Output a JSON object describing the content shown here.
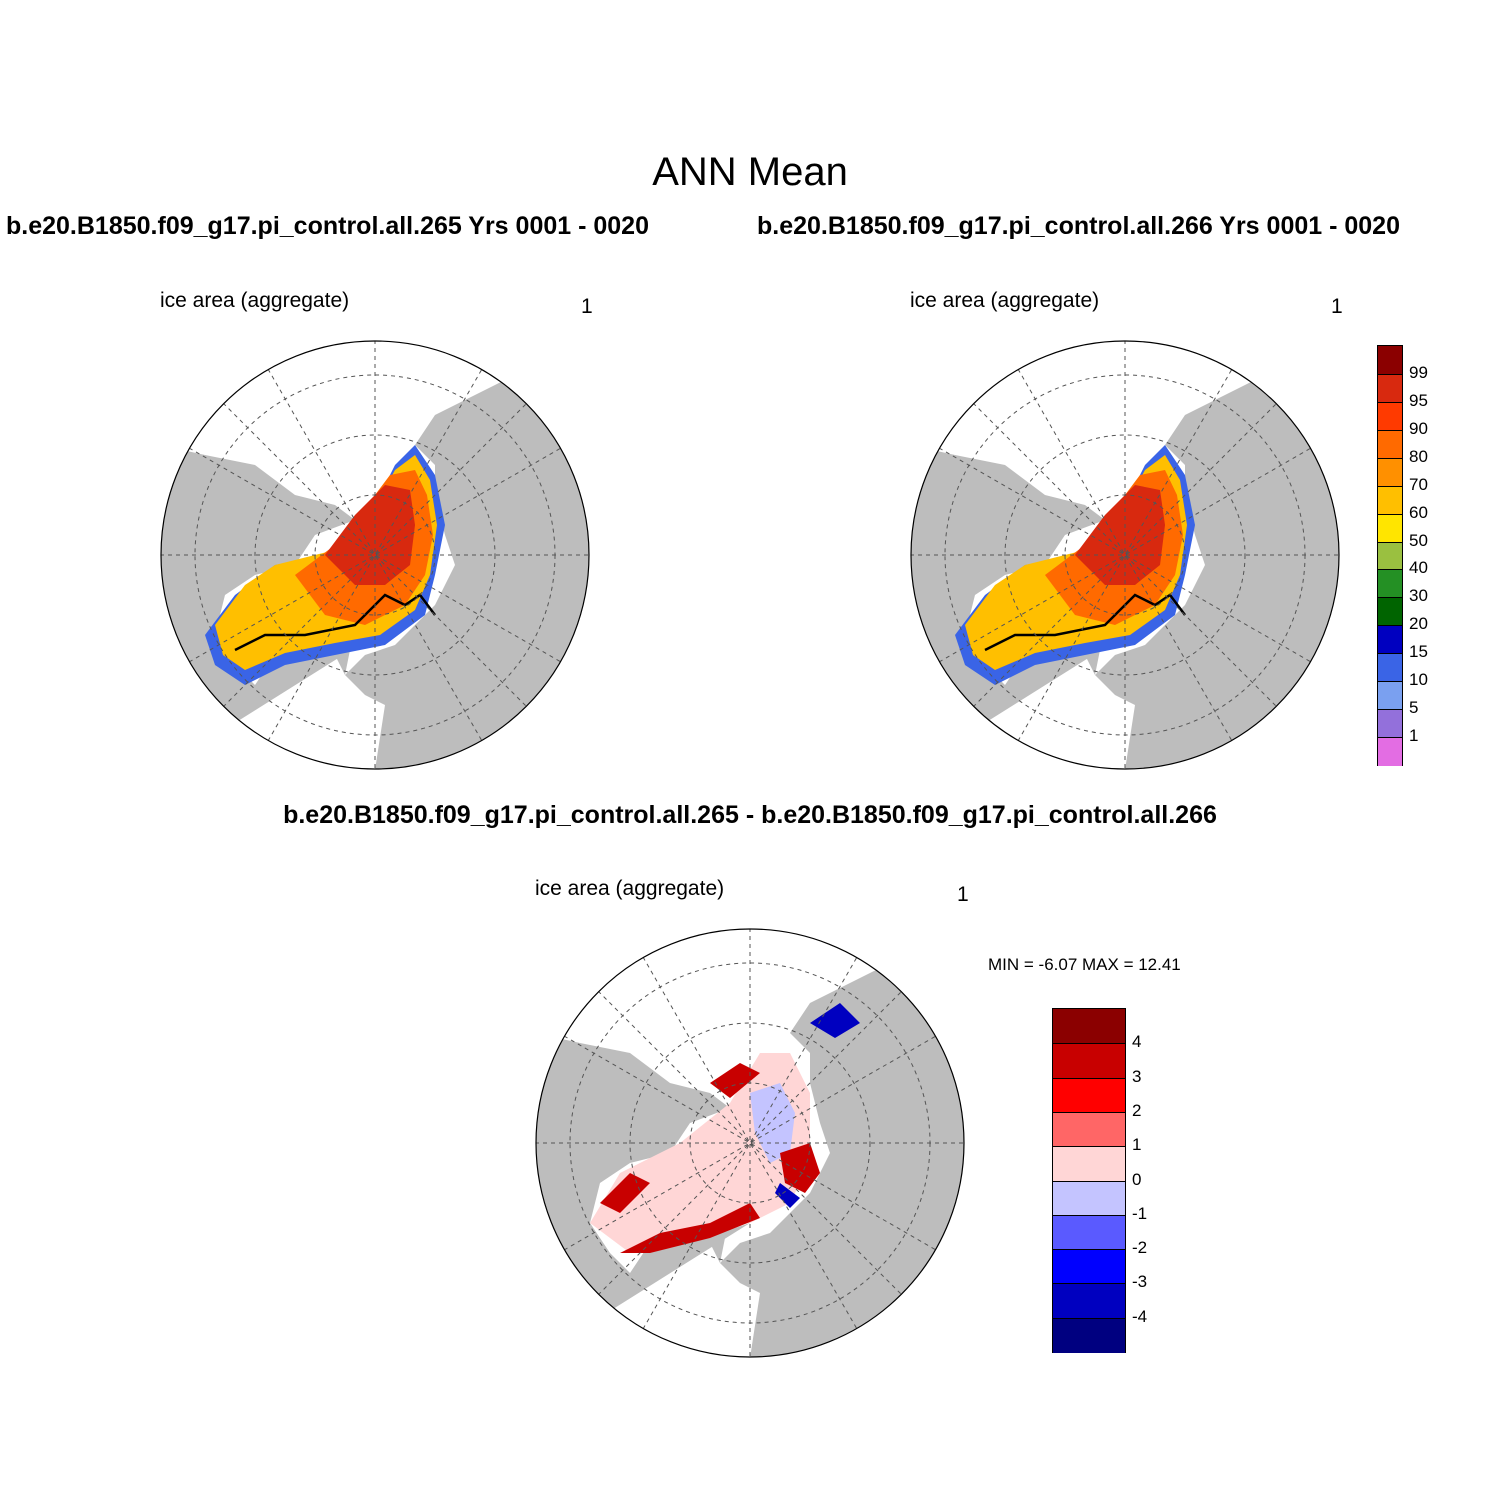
{
  "title": "ANN Mean",
  "panels": [
    {
      "case_title": "b.e20.B1850.f09_g17.pi_control.all.265  Yrs 0001 - 0020",
      "variable": "ice area  (aggregate)",
      "units": "1"
    },
    {
      "case_title": "b.e20.B1850.f09_g17.pi_control.all.266  Yrs 0001 - 0020",
      "variable": "ice area  (aggregate)",
      "units": "1"
    }
  ],
  "difference": {
    "title": "b.e20.B1850.f09_g17.pi_control.all.265 - b.e20.B1850.f09_g17.pi_control.all.266",
    "variable": "ice area  (aggregate)",
    "units": "1",
    "minmax": "MIN =  -6.07 MAX =  12.41"
  },
  "colorbar_main": {
    "ticks": [
      "99",
      "95",
      "90",
      "80",
      "70",
      "60",
      "50",
      "40",
      "30",
      "20",
      "15",
      "10",
      "5",
      "1"
    ],
    "colors": [
      "#8b0000",
      "#d8290f",
      "#ff3a00",
      "#ff6a00",
      "#ff9000",
      "#ffbf00",
      "#ffe500",
      "#9ac040",
      "#249024",
      "#006400",
      "#0000c0",
      "#3a64e6",
      "#7aa0f0",
      "#9370db",
      "#e36de3"
    ]
  },
  "colorbar_diff": {
    "ticks": [
      "4",
      "3",
      "2",
      "1",
      "0",
      "-1",
      "-2",
      "-3",
      "-4"
    ],
    "colors": [
      "#8b0000",
      "#c80000",
      "#ff0000",
      "#ff6666",
      "#ffd6d6",
      "#c4c4ff",
      "#5a5aff",
      "#0000ff",
      "#0000c0",
      "#000080"
    ]
  },
  "map": {
    "land_color": "#bdbdbd",
    "ocean_color": "#ffffff"
  }
}
